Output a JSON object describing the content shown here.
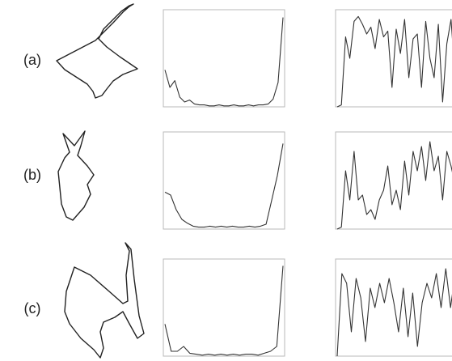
{
  "panel_labels": [
    "(a)",
    "(b)",
    "(c)"
  ],
  "chart_data": [
    {
      "type": "line",
      "color": "#333333",
      "ylim": [
        0,
        1
      ],
      "values": [
        0.38,
        0.2,
        0.27,
        0.1,
        0.05,
        0.07,
        0.03,
        0.02,
        0.02,
        0.01,
        0.01,
        0.02,
        0.01,
        0.01,
        0.02,
        0.01,
        0.01,
        0.02,
        0.01,
        0.02,
        0.02,
        0.03,
        0.08,
        0.25,
        0.92
      ]
    },
    {
      "type": "line",
      "color": "#333333",
      "ylim": [
        0,
        1
      ],
      "values": [
        0,
        0.02,
        0.72,
        0.5,
        0.88,
        0.93,
        0.85,
        0.75,
        0.82,
        0.6,
        0.9,
        0.72,
        0.78,
        0.2,
        0.8,
        0.55,
        0.9,
        0.3,
        0.7,
        0.75,
        0.2,
        0.88,
        0.5,
        0.3,
        0.85,
        0.05,
        0.65,
        0.9,
        0.3
      ]
    },
    {
      "type": "line",
      "color": "#333333",
      "ylim": [
        0,
        1
      ],
      "values": [
        0.38,
        0.35,
        0.2,
        0.1,
        0.06,
        0.03,
        0.02,
        0.02,
        0.03,
        0.02,
        0.03,
        0.02,
        0.03,
        0.02,
        0.02,
        0.03,
        0.02,
        0.03,
        0.05,
        0.3,
        0.55,
        0.88
      ]
    },
    {
      "type": "line",
      "color": "#333333",
      "ylim": [
        0,
        1
      ],
      "values": [
        0,
        0.02,
        0.6,
        0.3,
        0.8,
        0.3,
        0.35,
        0.15,
        0.2,
        0.1,
        0.3,
        0.4,
        0.65,
        0.25,
        0.4,
        0.2,
        0.7,
        0.35,
        0.8,
        0.6,
        0.85,
        0.5,
        0.9,
        0.6,
        0.75,
        0.3,
        0.8,
        0.65,
        0.45
      ]
    },
    {
      "type": "line",
      "color": "#333333",
      "ylim": [
        0,
        1
      ],
      "values": [
        0.33,
        0.05,
        0.05,
        0.1,
        0.03,
        0.02,
        0.01,
        0.02,
        0.01,
        0.02,
        0.01,
        0.02,
        0.01,
        0.02,
        0.02,
        0.01,
        0.03,
        0.05,
        0.1,
        0.93
      ]
    },
    {
      "type": "line",
      "color": "#333333",
      "ylim": [
        0,
        1
      ],
      "values": [
        0,
        0.85,
        0.75,
        0.25,
        0.8,
        0.6,
        0.15,
        0.7,
        0.5,
        0.75,
        0.55,
        0.8,
        0.55,
        0.25,
        0.7,
        0.2,
        0.65,
        0.1,
        0.55,
        0.75,
        0.6,
        0.85,
        0.5,
        0.9,
        0.5,
        0.85
      ]
    }
  ]
}
